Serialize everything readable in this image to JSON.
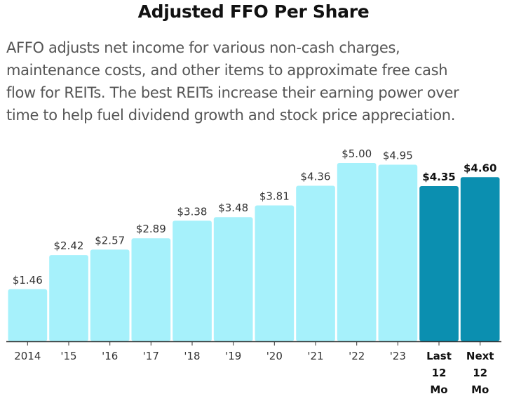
{
  "chart_data": {
    "type": "bar",
    "title": "Adjusted FFO Per Share",
    "subtitle": "AFFO adjusts net income for various non-cash charges,\nmaintenance costs, and other items to approximate free cash\nflow for REITs. The best REITs increase their earning power over\ntime to help fuel dividend growth and stock price appreciation.",
    "categories": [
      "2014",
      "'15",
      "'16",
      "'17",
      "'18",
      "'19",
      "'20",
      "'21",
      "'22",
      "'23",
      "Last 12 Mo",
      "Next 12 Mo"
    ],
    "category_lines": [
      [
        "2014"
      ],
      [
        "'15"
      ],
      [
        "'16"
      ],
      [
        "'17"
      ],
      [
        "'18"
      ],
      [
        "'19"
      ],
      [
        "'20"
      ],
      [
        "'21"
      ],
      [
        "'22"
      ],
      [
        "'23"
      ],
      [
        "Last",
        "12",
        "Mo"
      ],
      [
        "Next",
        "12",
        "Mo"
      ]
    ],
    "values": [
      1.46,
      2.42,
      2.57,
      2.89,
      3.38,
      3.48,
      3.81,
      4.36,
      5.0,
      4.95,
      4.35,
      4.6
    ],
    "value_labels": [
      "$1.46",
      "$2.42",
      "$2.57",
      "$2.89",
      "$3.38",
      "$3.48",
      "$3.81",
      "$4.36",
      "$5.00",
      "$4.95",
      "$4.35",
      "$4.60"
    ],
    "highlighted": [
      false,
      false,
      false,
      false,
      false,
      false,
      false,
      false,
      false,
      false,
      true,
      true
    ],
    "ylim": [
      0,
      5.0
    ],
    "grid": false,
    "xlabel": "",
    "ylabel": "",
    "colors": {
      "bar": "#a6f1fb",
      "bar_highlight": "#0b8fb0",
      "axis": "#333333"
    }
  }
}
